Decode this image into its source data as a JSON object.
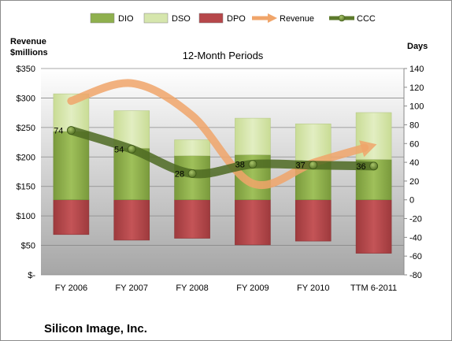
{
  "chart_data": {
    "type": "bar",
    "title": "12-Month Periods",
    "company": "Silicon Image, Inc.",
    "left_axis_title": [
      "Revenue",
      "$millions"
    ],
    "right_axis_title": "Days",
    "categories": [
      "FY 2006",
      "FY 2007",
      "FY 2008",
      "FY 2009",
      "FY 2010",
      "TTM 6-2011"
    ],
    "left_axis": {
      "min": 0,
      "max": 350,
      "step": 50,
      "ticks": [
        "$-",
        "$50",
        "$100",
        "$150",
        "$200",
        "$250",
        "$300",
        "$350"
      ]
    },
    "right_axis": {
      "min": -80,
      "max": 140,
      "step": 20,
      "ticks": [
        "-80",
        "-60",
        "-40",
        "-20",
        "0",
        "20",
        "40",
        "60",
        "80",
        "100",
        "120",
        "140"
      ]
    },
    "legend": [
      {
        "name": "DIO",
        "kind": "bar",
        "color": "#8fb04e"
      },
      {
        "name": "DSO",
        "kind": "bar",
        "color": "#d6e6ad"
      },
      {
        "name": "DPO",
        "kind": "bar",
        "color": "#b6474a"
      },
      {
        "name": "Revenue",
        "kind": "arrow",
        "color": "#f0a56a"
      },
      {
        "name": "CCC",
        "kind": "line-marker",
        "color": "#5d7a2c"
      }
    ],
    "legend_position": "top",
    "grid": true,
    "series": [
      {
        "name": "DIO",
        "axis": "days",
        "values": [
          73,
          55,
          47,
          48,
          41,
          43
        ]
      },
      {
        "name": "DSO",
        "axis": "days",
        "values": [
          40,
          40,
          17,
          39,
          40,
          50
        ]
      },
      {
        "name": "DPO",
        "axis": "days",
        "values": [
          -37,
          -43,
          -41,
          -48,
          -44,
          -57
        ]
      },
      {
        "name": "CCC",
        "axis": "days",
        "values": [
          74,
          54,
          28,
          38,
          37,
          36
        ]
      },
      {
        "name": "Revenue",
        "axis": "revenue",
        "values": [
          295,
          325,
          270,
          155,
          190,
          220
        ]
      }
    ]
  }
}
